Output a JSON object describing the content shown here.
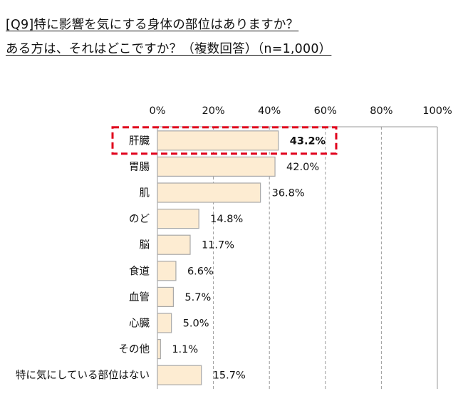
{
  "title_lines": [
    "[Q9]特に影響を気にする身体の部位はありますか？",
    "ある方は、それはどこですか？（複数回答）（n=1,000）"
  ],
  "chart_data": {
    "type": "bar",
    "orientation": "horizontal",
    "categories": [
      "肝臓",
      "胃腸",
      "肌",
      "のど",
      "脳",
      "食道",
      "血管",
      "心臓",
      "その他",
      "特に気にしている部位はない"
    ],
    "values": [
      43.2,
      42.0,
      36.8,
      14.8,
      11.7,
      6.6,
      5.7,
      5.0,
      1.1,
      15.7
    ],
    "value_labels": [
      "43.2%",
      "42.0%",
      "36.8%",
      "14.8%",
      "11.7%",
      "6.6%",
      "5.7%",
      "5.0%",
      "1.1%",
      "15.7%"
    ],
    "xlim": [
      0,
      100
    ],
    "x_ticks": [
      0,
      20,
      40,
      60,
      80,
      100
    ],
    "x_tick_labels": [
      "0%",
      "20%",
      "40%",
      "60%",
      "80%",
      "100%"
    ],
    "highlighted_category": "肝臓",
    "bar_fill": "#fdecd2",
    "bar_stroke": "#a8a8a8",
    "highlight_color": "#e0001b",
    "grid": "dashed vertical",
    "tick_position": "top"
  }
}
